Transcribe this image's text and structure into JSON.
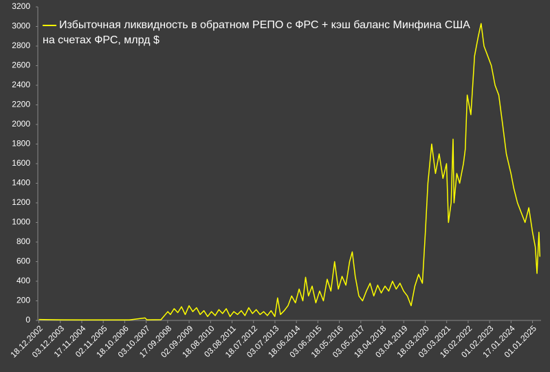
{
  "chart_data": {
    "type": "line",
    "series": [
      {
        "name": "Избыточная ликвидность в обратном РЕПО с ФРС + кэш баланс Минфина США на счетах ФРС, млрд $",
        "color": "#ffff00",
        "x": [
          "2002-12-18",
          "2003-06-01",
          "2004-01-01",
          "2005-01-01",
          "2006-01-01",
          "2007-01-01",
          "2007-09-15",
          "2007-10-15",
          "2008-06-01",
          "2008-09-20",
          "2008-11-01",
          "2009-01-01",
          "2009-03-01",
          "2009-05-01",
          "2009-07-01",
          "2009-09-01",
          "2009-11-01",
          "2010-01-01",
          "2010-03-01",
          "2010-05-01",
          "2010-07-01",
          "2010-09-01",
          "2010-11-01",
          "2011-01-01",
          "2011-03-01",
          "2011-05-01",
          "2011-07-01",
          "2011-09-01",
          "2011-11-01",
          "2012-01-01",
          "2012-03-01",
          "2012-05-01",
          "2012-07-01",
          "2012-09-01",
          "2012-11-01",
          "2013-01-01",
          "2013-03-01",
          "2013-05-01",
          "2013-07-01",
          "2013-08-15",
          "2013-10-01",
          "2013-12-01",
          "2014-02-01",
          "2014-04-01",
          "2014-06-01",
          "2014-08-01",
          "2014-10-01",
          "2014-11-15",
          "2015-01-01",
          "2015-03-01",
          "2015-05-01",
          "2015-07-01",
          "2015-09-01",
          "2015-11-01",
          "2016-01-01",
          "2016-03-01",
          "2016-05-01",
          "2016-07-01",
          "2016-09-01",
          "2016-11-01",
          "2016-12-15",
          "2017-02-01",
          "2017-04-01",
          "2017-06-01",
          "2017-08-01",
          "2017-10-01",
          "2017-12-01",
          "2018-02-01",
          "2018-04-01",
          "2018-06-01",
          "2018-08-01",
          "2018-10-01",
          "2018-12-01",
          "2019-02-01",
          "2019-04-01",
          "2019-06-01",
          "2019-08-01",
          "2019-10-01",
          "2019-12-01",
          "2020-02-01",
          "2020-03-20",
          "2020-05-01",
          "2020-07-01",
          "2020-09-01",
          "2020-11-01",
          "2021-01-01",
          "2021-03-01",
          "2021-04-01",
          "2021-05-15",
          "2021-06-15",
          "2021-07-01",
          "2021-08-15",
          "2021-10-01",
          "2021-12-01",
          "2022-01-01",
          "2022-02-01",
          "2022-04-01",
          "2022-06-01",
          "2022-08-01",
          "2022-09-15",
          "2022-11-01",
          "2023-01-01",
          "2023-03-01",
          "2023-05-01",
          "2023-07-01",
          "2023-09-01",
          "2023-11-01",
          "2024-01-15",
          "2024-03-01",
          "2024-05-01",
          "2024-07-01",
          "2024-09-01",
          "2024-11-01",
          "2025-01-01",
          "2025-02-15",
          "2025-03-15",
          "2025-04-15",
          "2025-05-01"
        ],
        "values": [
          10,
          8,
          6,
          5,
          5,
          5,
          25,
          6,
          8,
          90,
          60,
          120,
          80,
          140,
          60,
          150,
          90,
          130,
          60,
          100,
          40,
          90,
          50,
          110,
          70,
          120,
          40,
          90,
          60,
          100,
          50,
          130,
          70,
          110,
          60,
          90,
          50,
          100,
          40,
          230,
          60,
          100,
          150,
          250,
          180,
          320,
          200,
          440,
          250,
          350,
          180,
          300,
          200,
          420,
          300,
          600,
          320,
          450,
          360,
          600,
          700,
          450,
          250,
          200,
          300,
          380,
          250,
          360,
          280,
          350,
          300,
          400,
          320,
          380,
          300,
          250,
          150,
          350,
          470,
          380,
          900,
          1400,
          1800,
          1500,
          1700,
          1450,
          1600,
          1000,
          1200,
          1850,
          1200,
          1500,
          1400,
          1600,
          1750,
          2300,
          2100,
          2700,
          2900,
          3030,
          2800,
          2700,
          2600,
          2400,
          2300,
          2000,
          1700,
          1500,
          1350,
          1200,
          1100,
          1000,
          1150,
          900,
          750,
          480,
          900,
          650
        ]
      }
    ],
    "xlim": [
      "2002-12-01",
      "2025-05-20"
    ],
    "xticks": [
      {
        "value": "2002-12-18",
        "label": "18.12.2002"
      },
      {
        "value": "2003-12-03",
        "label": "03.12.2003"
      },
      {
        "value": "2004-11-17",
        "label": "17.11.2004"
      },
      {
        "value": "2005-11-02",
        "label": "02.11.2005"
      },
      {
        "value": "2006-10-18",
        "label": "18.10.2006"
      },
      {
        "value": "2007-10-03",
        "label": "03.10.2007"
      },
      {
        "value": "2008-09-17",
        "label": "17.09.2008"
      },
      {
        "value": "2009-09-02",
        "label": "02.09.2009"
      },
      {
        "value": "2010-08-18",
        "label": "18.08.2010"
      },
      {
        "value": "2011-08-03",
        "label": "03.08.2011"
      },
      {
        "value": "2012-07-18",
        "label": "18.07.2012"
      },
      {
        "value": "2013-07-03",
        "label": "03.07.2013"
      },
      {
        "value": "2014-06-18",
        "label": "18.06.2014"
      },
      {
        "value": "2015-06-03",
        "label": "03.06.2015"
      },
      {
        "value": "2016-05-18",
        "label": "18.05.2016"
      },
      {
        "value": "2017-05-03",
        "label": "03.05.2017"
      },
      {
        "value": "2018-04-18",
        "label": "18.04.2018"
      },
      {
        "value": "2019-04-03",
        "label": "03.04.2019"
      },
      {
        "value": "2020-03-18",
        "label": "18.03.2020"
      },
      {
        "value": "2021-03-03",
        "label": "03.03.2021"
      },
      {
        "value": "2022-02-16",
        "label": "16.02.2022"
      },
      {
        "value": "2023-02-01",
        "label": "01.02.2023"
      },
      {
        "value": "2024-01-17",
        "label": "17.01.2024"
      },
      {
        "value": "2025-01-01",
        "label": "01.01.2025"
      }
    ],
    "ylim": [
      0,
      3200
    ],
    "yticks": [
      0,
      200,
      400,
      600,
      800,
      1000,
      1200,
      1400,
      1600,
      1800,
      2000,
      2200,
      2400,
      2600,
      2800,
      3000,
      3200
    ],
    "legend": "top-left"
  }
}
